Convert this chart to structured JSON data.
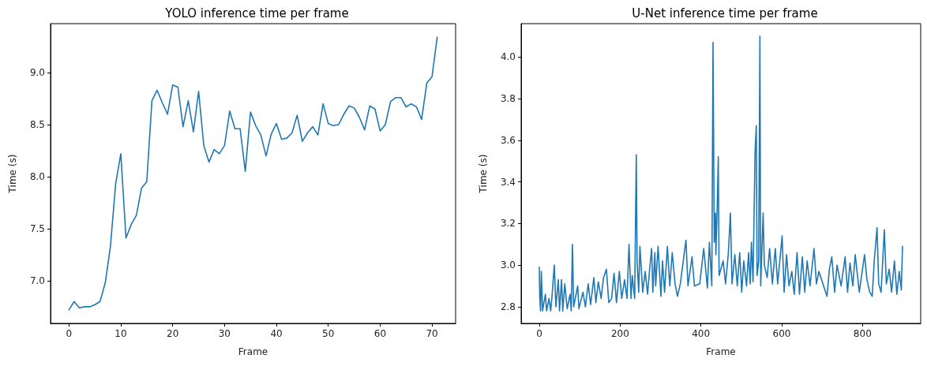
{
  "chart_data": [
    {
      "type": "line",
      "title": "YOLO inference time per frame",
      "xlabel": "Frame",
      "ylabel": "Time (s)",
      "x": [
        0,
        1,
        2,
        3,
        4,
        5,
        6,
        7,
        8,
        9,
        10,
        11,
        12,
        13,
        14,
        15,
        16,
        17,
        18,
        19,
        20,
        21,
        22,
        23,
        24,
        25,
        26,
        27,
        28,
        29,
        30,
        31,
        32,
        33,
        34,
        35,
        36,
        37,
        38,
        39,
        40,
        41,
        42,
        43,
        44,
        45,
        46,
        47,
        48,
        49,
        50,
        51,
        52,
        53,
        54,
        55,
        56,
        57,
        58,
        59,
        60,
        61,
        62,
        63,
        64,
        65,
        66,
        67,
        68,
        69,
        70,
        71
      ],
      "series": [
        {
          "color": "#1f77b4",
          "values": [
            6.72,
            6.8,
            6.74,
            6.75,
            6.75,
            6.77,
            6.8,
            6.98,
            7.33,
            7.93,
            8.22,
            7.41,
            7.54,
            7.63,
            7.89,
            7.95,
            8.73,
            8.83,
            8.71,
            8.6,
            8.88,
            8.86,
            8.48,
            8.73,
            8.43,
            8.82,
            8.3,
            8.14,
            8.26,
            8.22,
            8.3,
            8.63,
            8.46,
            8.46,
            8.05,
            8.62,
            8.49,
            8.4,
            8.2,
            8.41,
            8.51,
            8.36,
            8.37,
            8.42,
            8.59,
            8.34,
            8.42,
            8.48,
            8.4,
            8.7,
            8.51,
            8.49,
            8.5,
            8.6,
            8.68,
            8.66,
            8.57,
            8.45,
            8.68,
            8.65,
            8.44,
            8.5,
            8.72,
            8.76,
            8.76,
            8.67,
            8.7,
            8.67,
            8.55,
            8.9,
            8.96,
            9.34
          ]
        }
      ],
      "xlim": [
        -3.55,
        74.55
      ],
      "ylim": [
        6.59,
        9.47
      ],
      "xticks": [
        0,
        10,
        20,
        30,
        40,
        50,
        60,
        70
      ],
      "yticks": [
        {
          "value": 7,
          "label": "7.0"
        },
        7.5,
        {
          "value": 8,
          "label": "8.0"
        },
        8.5,
        {
          "value": 9,
          "label": "9.0"
        }
      ]
    },
    {
      "type": "line",
      "title": "U-Net inference time per frame",
      "xlabel": "Frame",
      "ylabel": "Time (s)",
      "x": [
        0,
        1,
        3,
        5,
        8,
        15,
        18,
        24,
        28,
        31,
        37,
        41,
        47,
        50,
        55,
        58,
        63,
        69,
        76,
        79,
        82,
        85,
        95,
        98,
        108,
        114,
        121,
        127,
        135,
        140,
        146,
        153,
        159,
        166,
        172,
        179,
        185,
        191,
        198,
        204,
        211,
        217,
        222,
        227,
        230,
        236,
        240,
        242,
        246,
        249,
        256,
        262,
        268,
        273,
        278,
        281,
        286,
        288,
        294,
        301,
        305,
        310,
        317,
        323,
        329,
        336,
        342,
        349,
        363,
        368,
        378,
        384,
        397,
        407,
        416,
        421,
        427,
        430,
        433,
        436,
        437,
        440,
        443,
        445,
        455,
        461,
        468,
        473,
        477,
        484,
        490,
        496,
        501,
        506,
        513,
        518,
        522,
        525,
        529,
        534,
        537,
        539,
        543,
        546,
        548,
        554,
        557,
        564,
        570,
        577,
        584,
        590,
        601,
        606,
        612,
        618,
        625,
        631,
        638,
        644,
        651,
        657,
        663,
        670,
        680,
        686,
        692,
        702,
        712,
        718,
        724,
        731,
        737,
        747,
        757,
        763,
        769,
        776,
        782,
        792,
        805,
        811,
        818,
        824,
        829,
        836,
        840,
        846,
        854,
        859,
        866,
        872,
        879,
        885,
        891,
        896,
        899
      ],
      "series": [
        {
          "color": "#1f77b4",
          "values": [
            2.99,
            2.85,
            2.78,
            2.97,
            2.78,
            2.86,
            2.78,
            2.84,
            2.78,
            2.84,
            3.0,
            2.8,
            2.93,
            2.78,
            2.93,
            2.78,
            2.91,
            2.79,
            2.86,
            2.78,
            3.1,
            2.8,
            2.9,
            2.79,
            2.87,
            2.8,
            2.91,
            2.81,
            2.94,
            2.82,
            2.92,
            2.84,
            2.94,
            2.98,
            2.82,
            2.84,
            2.96,
            2.82,
            2.97,
            2.84,
            2.93,
            2.84,
            3.1,
            2.84,
            2.95,
            2.84,
            3.53,
            3.02,
            2.87,
            3.09,
            2.87,
            2.97,
            2.86,
            2.98,
            3.08,
            2.87,
            3.06,
            2.9,
            3.09,
            2.85,
            3.02,
            2.87,
            3.09,
            2.9,
            3.06,
            2.91,
            2.85,
            2.91,
            3.12,
            2.9,
            3.04,
            2.9,
            2.91,
            3.08,
            2.89,
            3.11,
            2.9,
            4.07,
            3.11,
            3.25,
            3.05,
            3.25,
            3.52,
            2.95,
            3.02,
            2.91,
            3.06,
            3.25,
            2.91,
            3.05,
            2.9,
            3.06,
            2.87,
            3.02,
            2.9,
            3.06,
            2.91,
            3.11,
            2.92,
            3.54,
            3.67,
            2.95,
            3.02,
            4.1,
            2.9,
            3.25,
            3.0,
            2.94,
            3.08,
            2.91,
            3.08,
            2.91,
            3.14,
            2.87,
            3.05,
            2.9,
            2.97,
            2.86,
            3.06,
            2.86,
            3.04,
            2.87,
            3.02,
            2.9,
            3.08,
            2.91,
            2.97,
            2.91,
            2.85,
            2.98,
            3.04,
            2.87,
            3.0,
            2.9,
            3.04,
            2.87,
            3.01,
            2.9,
            3.05,
            2.87,
            3.05,
            2.93,
            2.87,
            2.85,
            3.02,
            3.18,
            2.91,
            2.87,
            3.17,
            2.91,
            2.98,
            2.87,
            3.02,
            2.86,
            2.97,
            2.88,
            3.09
          ]
        }
      ],
      "xlim": [
        -45,
        944
      ],
      "ylim": [
        2.72,
        4.16
      ],
      "xticks": [
        0,
        200,
        400,
        600,
        800
      ],
      "yticks": [
        2.8,
        {
          "value": 3,
          "label": "3.0"
        },
        3.2,
        3.4,
        3.6,
        3.8,
        {
          "value": 4,
          "label": "4.0"
        }
      ]
    }
  ]
}
